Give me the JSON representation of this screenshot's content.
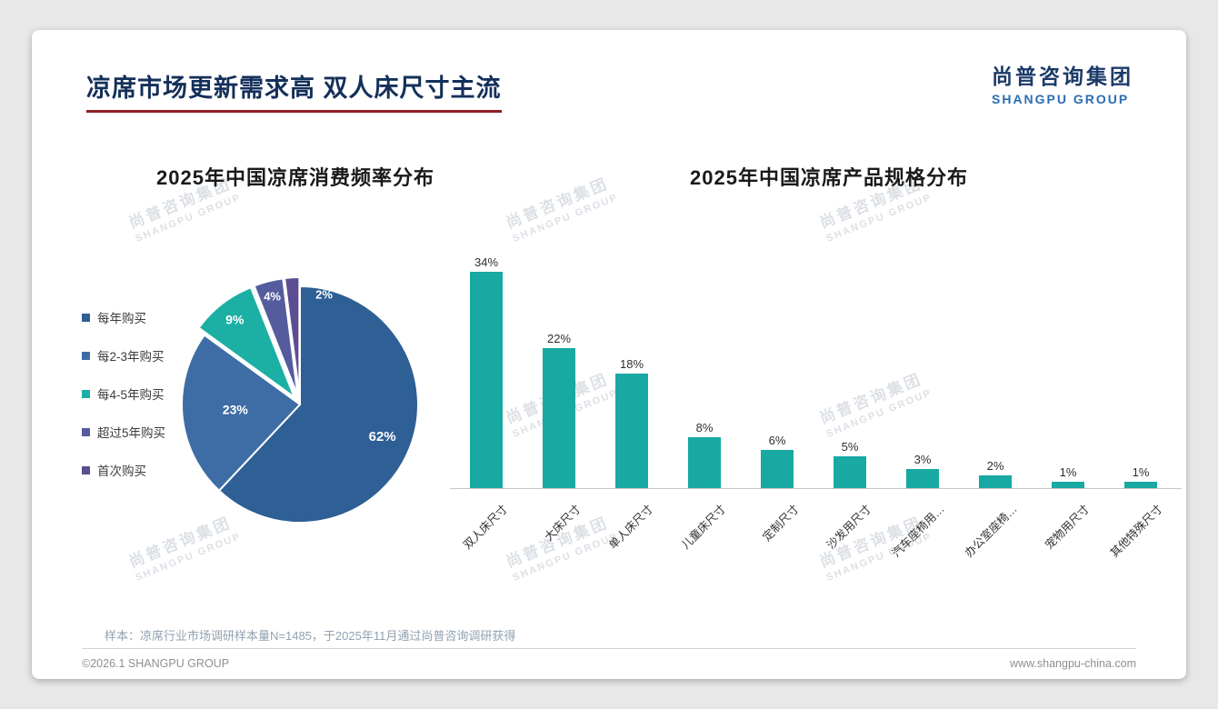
{
  "page": {
    "title": "凉席市场更新需求高 双人床尺寸主流",
    "logo": {
      "cn": "尚普咨询集团",
      "en": "SHANGPU GROUP"
    },
    "watermark": {
      "cn": "尚普咨询集团",
      "en": "SHANGPU GROUP"
    },
    "footnote": "样本：凉席行业市场调研样本量N=1485，于2025年11月通过尚普咨询调研获得",
    "footer": {
      "left": "©2026.1 SHANGPU GROUP",
      "right": "www.shangpu-china.com"
    }
  },
  "chart_data": [
    {
      "type": "pie",
      "title": "2025年中国凉席消费频率分布",
      "labels": [
        "每年购买",
        "每2-3年购买",
        "每4-5年购买",
        "超过5年购买",
        "首次购买"
      ],
      "values": [
        62,
        23,
        9,
        4,
        2
      ],
      "data_labels": [
        "62%",
        "23%",
        "9%",
        "4%",
        "2%"
      ],
      "colors": [
        "#2e5f95",
        "#3e6da6",
        "#1cb0a5",
        "#545c9e",
        "#5c4d93"
      ],
      "legend_position": "left"
    },
    {
      "type": "bar",
      "title": "2025年中国凉席产品规格分布",
      "categories": [
        "双人床尺寸",
        "大床尺寸",
        "单人床尺寸",
        "儿童床尺寸",
        "定制尺寸",
        "沙发用尺寸",
        "汽车座椅用…",
        "办公室座椅…",
        "宠物用尺寸",
        "其他特殊尺寸"
      ],
      "values": [
        34,
        22,
        18,
        8,
        6,
        5,
        3,
        2,
        1,
        1
      ],
      "data_labels": [
        "34%",
        "22%",
        "18%",
        "8%",
        "6%",
        "5%",
        "3%",
        "2%",
        "1%",
        "1%"
      ],
      "bar_color": "#17a9a2",
      "ylim": [
        0,
        38
      ],
      "grid": false,
      "legend_position": "none"
    }
  ]
}
